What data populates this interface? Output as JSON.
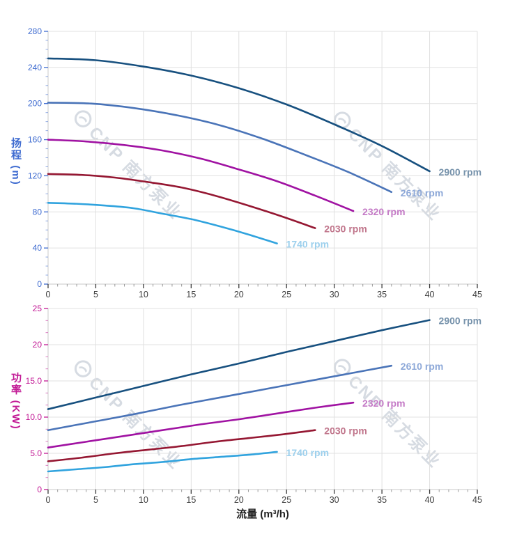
{
  "watermark": {
    "text": "CNP 南方泵业"
  },
  "axes_style": {
    "grid_color": "#e0e0e0",
    "spine_color": "#c8c8c8",
    "x_label_color": "#3c3c3c",
    "x_minor_tick_color": "#999999"
  },
  "chart_data": [
    {
      "type": "line",
      "title": "",
      "xlabel": "流量 (m³/h)",
      "ylabel": "扬程 (m)",
      "xlim": [
        0,
        45
      ],
      "ylim": [
        0,
        280
      ],
      "grid": true,
      "legend_position": "end-of-line-labels",
      "axis_color": "#3e6bd0",
      "x_tick_values": [
        0,
        5,
        10,
        15,
        20,
        25,
        30,
        35,
        40,
        45
      ],
      "x_tick_labels": [
        "0",
        "5",
        "10",
        "15",
        "20",
        "25",
        "30",
        "35",
        "40",
        "45"
      ],
      "x_minor_step": 1,
      "y_tick_values": [
        0,
        40,
        80,
        120,
        160,
        200,
        240,
        280
      ],
      "y_tick_labels": [
        "0",
        "40",
        "80",
        "120",
        "160",
        "200",
        "240",
        "280"
      ],
      "y_minor_per_major": 3,
      "series": [
        {
          "name": "2900 rpm",
          "color": "#17507f",
          "label_color": "#7692ab",
          "points": [
            [
              0,
              250
            ],
            [
              5,
              248
            ],
            [
              10,
              241
            ],
            [
              15,
              231
            ],
            [
              20,
              217
            ],
            [
              25,
              199
            ],
            [
              30,
              177
            ],
            [
              35,
              153
            ],
            [
              40,
              125
            ]
          ]
        },
        {
          "name": "2610 rpm",
          "color": "#4a74b8",
          "label_color": "#8da8d8",
          "points": [
            [
              0,
              201
            ],
            [
              4.5,
              200
            ],
            [
              9,
              195
            ],
            [
              13.5,
              187
            ],
            [
              18,
              176
            ],
            [
              22.5,
              161
            ],
            [
              27,
              143
            ],
            [
              31.5,
              124
            ],
            [
              36,
              102
            ]
          ]
        },
        {
          "name": "2320 rpm",
          "color": "#a012a2",
          "label_color": "#c47ac6",
          "points": [
            [
              0,
              160
            ],
            [
              4,
              158
            ],
            [
              8,
              154
            ],
            [
              12,
              148
            ],
            [
              16,
              139
            ],
            [
              20,
              127
            ],
            [
              24,
              114
            ],
            [
              28,
              98
            ],
            [
              32,
              81
            ]
          ]
        },
        {
          "name": "2030 rpm",
          "color": "#951732",
          "label_color": "#c0758b",
          "points": [
            [
              0,
              122
            ],
            [
              3.5,
              121
            ],
            [
              7,
              118
            ],
            [
              10.5,
              113
            ],
            [
              14,
              107
            ],
            [
              17.5,
              98
            ],
            [
              21,
              87
            ],
            [
              24.5,
              75
            ],
            [
              28,
              62
            ]
          ]
        },
        {
          "name": "1740 rpm",
          "color": "#30a3de",
          "label_color": "#9dd0ed",
          "points": [
            [
              0,
              90
            ],
            [
              3,
              89
            ],
            [
              6,
              87
            ],
            [
              9,
              84
            ],
            [
              12,
              78
            ],
            [
              15,
              72
            ],
            [
              18,
              64
            ],
            [
              21,
              55
            ],
            [
              24,
              45
            ]
          ]
        }
      ]
    },
    {
      "type": "line",
      "title": "",
      "xlabel": "流量 (m³/h)",
      "ylabel": "功率 (KW)",
      "xlim": [
        0,
        45
      ],
      "ylim": [
        0,
        25
      ],
      "grid": true,
      "legend_position": "end-of-line-labels",
      "axis_color": "#c21995",
      "x_tick_values": [
        0,
        5,
        10,
        15,
        20,
        25,
        30,
        35,
        40,
        45
      ],
      "x_tick_labels": [
        "0",
        "5",
        "10",
        "15",
        "20",
        "25",
        "30",
        "35",
        "40",
        "45"
      ],
      "x_minor_step": 1,
      "y_tick_values": [
        0,
        5,
        10,
        15,
        20,
        25
      ],
      "y_tick_labels": [
        "0",
        "5.0",
        "10.0",
        "15.0",
        "20",
        "25"
      ],
      "y_minor_per_major": 2,
      "series": [
        {
          "name": "2900 rpm",
          "color": "#17507f",
          "label_color": "#7692ab",
          "points": [
            [
              0,
              11.1
            ],
            [
              5,
              12.7
            ],
            [
              10,
              14.3
            ],
            [
              15,
              15.9
            ],
            [
              20,
              17.4
            ],
            [
              25,
              19.0
            ],
            [
              30,
              20.5
            ],
            [
              35,
              22.0
            ],
            [
              40,
              23.4
            ]
          ]
        },
        {
          "name": "2610 rpm",
          "color": "#4a74b8",
          "label_color": "#8da8d8",
          "points": [
            [
              0,
              8.2
            ],
            [
              4.5,
              9.3
            ],
            [
              9,
              10.4
            ],
            [
              13.5,
              11.6
            ],
            [
              18,
              12.7
            ],
            [
              22.5,
              13.8
            ],
            [
              27,
              14.9
            ],
            [
              31.5,
              16.0
            ],
            [
              36,
              17.1
            ]
          ]
        },
        {
          "name": "2320 rpm",
          "color": "#a012a2",
          "label_color": "#c47ac6",
          "points": [
            [
              0,
              5.8
            ],
            [
              4,
              6.6
            ],
            [
              8,
              7.4
            ],
            [
              12,
              8.2
            ],
            [
              16,
              9.0
            ],
            [
              20,
              9.7
            ],
            [
              24,
              10.5
            ],
            [
              28,
              11.3
            ],
            [
              32,
              12.0
            ]
          ]
        },
        {
          "name": "2030 rpm",
          "color": "#951732",
          "label_color": "#c0758b",
          "points": [
            [
              0,
              3.9
            ],
            [
              3.5,
              4.4
            ],
            [
              7,
              5.0
            ],
            [
              10.5,
              5.5
            ],
            [
              14,
              6.0
            ],
            [
              17.5,
              6.6
            ],
            [
              21,
              7.1
            ],
            [
              24.5,
              7.6
            ],
            [
              28,
              8.2
            ]
          ]
        },
        {
          "name": "1740 rpm",
          "color": "#30a3de",
          "label_color": "#9dd0ed",
          "points": [
            [
              0,
              2.5
            ],
            [
              3,
              2.8
            ],
            [
              6,
              3.1
            ],
            [
              9,
              3.5
            ],
            [
              12,
              3.8
            ],
            [
              15,
              4.2
            ],
            [
              18,
              4.5
            ],
            [
              21,
              4.8
            ],
            [
              24,
              5.2
            ]
          ]
        }
      ]
    }
  ]
}
